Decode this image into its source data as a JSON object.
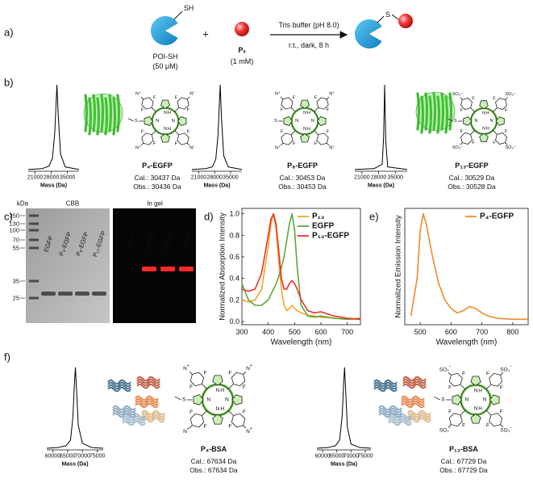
{
  "panel_labels": [
    "a)",
    "b)",
    "c)",
    "d)",
    "e)",
    "f)"
  ],
  "scheme": {
    "protein": "POI-SH",
    "protein_conc": "(50 μM)",
    "thiol": "SH",
    "plus": "+",
    "reagent": "Pₓ",
    "reagent_conc": "(1 mM)",
    "condition_1": "Tris buffer (pH 8.0)",
    "condition_2": "r.t., dark, 8 h",
    "linker": "S"
  },
  "conjugates": [
    {
      "name": "P₄-EGFP",
      "calculated": "Cal.: 30437 Da",
      "observed": "Obs.: 30436 Da",
      "atoms": {
        "N": "N",
        "H": "H",
        "F": "F",
        "S": "S",
        "group": "N",
        "charge": "+"
      }
    },
    {
      "name": "P₈-EGFP",
      "calculated": "Cal.: 30453 Da",
      "observed": "Obs.: 30453 Da",
      "atoms": {
        "N": "N",
        "H": "H",
        "F": "F",
        "S": "S",
        "group": "N",
        "charge": "+"
      }
    },
    {
      "name": "P₁₃-EGFP",
      "calculated": "Cal.: 30529 Da",
      "observed": "Obs.: 30528 Da",
      "atoms": {
        "N": "N",
        "H": "H",
        "F": "F",
        "S": "S",
        "group": "SO₃",
        "charge": "−"
      }
    },
    {
      "name": "P₄-BSA",
      "calculated": "Cal.: 67634 Da",
      "observed": "Obs.: 67634 Da",
      "atoms": {
        "N": "N",
        "H": "H",
        "F": "F",
        "S": "S",
        "group": "N",
        "charge": "+"
      }
    },
    {
      "name": "P₁₃-BSA",
      "calculated": "Cal.: 67729 Da",
      "observed": "Obs.: 67729 Da",
      "atoms": {
        "N": "N",
        "H": "H",
        "F": "F",
        "S": "S",
        "group": "SO₃",
        "charge": "−"
      }
    }
  ],
  "gel": {
    "unit": "kDa",
    "ladder": [
      "250",
      "130",
      "100",
      "70",
      "55",
      "35",
      "25"
    ],
    "stains": [
      "CBB",
      "In gel"
    ],
    "lanes": [
      "EGFP",
      "P₄-EGFP",
      "P₈-EGFP",
      "P₁₃-EGFP"
    ]
  },
  "chart_data": [
    {
      "type": "line",
      "xlabel": "Mass (Da)",
      "color": "#000000",
      "x": [
        18000,
        24000,
        27000,
        28500,
        29500,
        30000,
        30437,
        31000,
        32000,
        34000,
        40000
      ],
      "values": [
        0.02,
        0.03,
        0.06,
        0.15,
        0.45,
        0.75,
        1,
        0.65,
        0.2,
        0.05,
        0.02
      ],
      "xlim": [
        18000,
        40000
      ],
      "ylim": [
        0,
        1.05
      ],
      "xticks": [
        21000,
        28000,
        35000
      ]
    },
    {
      "type": "line",
      "xlabel": "Mass (Da)",
      "color": "#000000",
      "x": [
        18000,
        24000,
        27000,
        28500,
        29500,
        30000,
        30453,
        31000,
        32000,
        34000,
        40000
      ],
      "values": [
        0.02,
        0.03,
        0.05,
        0.14,
        0.42,
        0.74,
        1,
        0.62,
        0.18,
        0.05,
        0.02
      ],
      "xlim": [
        18000,
        40000
      ],
      "ylim": [
        0,
        1.05
      ],
      "xticks": [
        21000,
        28000,
        35000
      ]
    },
    {
      "type": "line",
      "xlabel": "Mass (Da)",
      "color": "#000000",
      "x": [
        18000,
        26000,
        29500,
        30100,
        30528,
        31000,
        31800,
        40000
      ],
      "values": [
        0.02,
        0.03,
        0.08,
        0.4,
        1,
        0.35,
        0.05,
        0.02
      ],
      "xlim": [
        18000,
        40000
      ],
      "ylim": [
        0,
        1.05
      ],
      "xticks": [
        21000,
        28000,
        35000
      ]
    },
    {
      "type": "line",
      "xlabel": "Wavelength (nm)",
      "ylabel": "Normalized Absorption Intensity",
      "x": [
        300,
        325,
        350,
        375,
        400,
        410,
        420,
        430,
        440,
        450,
        460,
        470,
        480,
        490,
        500,
        510,
        525,
        550,
        575,
        600,
        650,
        700,
        750
      ],
      "series": [
        {
          "name": "P₁₃",
          "color": "#f5a623",
          "values": [
            0.2,
            0.18,
            0.2,
            0.3,
            0.7,
            0.9,
            1.0,
            0.85,
            0.55,
            0.3,
            0.15,
            0.1,
            0.12,
            0.15,
            0.12,
            0.1,
            0.08,
            0.06,
            0.05,
            0.04,
            0.03,
            0.02,
            0.02
          ]
        },
        {
          "name": "EGFP",
          "color": "#5aa83a",
          "values": [
            0.35,
            0.2,
            0.15,
            0.15,
            0.2,
            0.25,
            0.3,
            0.35,
            0.42,
            0.5,
            0.6,
            0.75,
            0.9,
            1.0,
            0.85,
            0.5,
            0.15,
            0.05,
            0.04,
            0.05,
            0.03,
            0.02,
            0.03
          ]
        },
        {
          "name": "P₁₃-EGFP",
          "color": "#e8322a",
          "values": [
            0.3,
            0.28,
            0.3,
            0.45,
            0.8,
            0.95,
            1.0,
            0.9,
            0.65,
            0.4,
            0.3,
            0.3,
            0.35,
            0.38,
            0.35,
            0.3,
            0.2,
            0.1,
            0.08,
            0.09,
            0.05,
            0.03,
            0.02
          ]
        }
      ],
      "xlim": [
        300,
        750
      ],
      "ylim": [
        -0.03,
        1.05
      ],
      "xticks": [
        300,
        400,
        500,
        600,
        700
      ],
      "yticks": [
        {
          "value": 0,
          "label": "0.0"
        },
        0.2,
        0.4,
        0.6,
        0.8,
        {
          "value": 1,
          "label": "1.0"
        }
      ],
      "legend": "upper right"
    },
    {
      "type": "line",
      "xlabel": "Wavelength (nm)",
      "ylabel": "Normalized Emission Intensity",
      "x": [
        470,
        490,
        500,
        510,
        520,
        540,
        560,
        580,
        600,
        620,
        640,
        660,
        680,
        700,
        720,
        750,
        800,
        850
      ],
      "series": [
        {
          "name": "P₄-EGFP",
          "color": "#f08a2c",
          "values": [
            0.05,
            0.4,
            0.85,
            1.0,
            0.9,
            0.6,
            0.35,
            0.2,
            0.12,
            0.08,
            0.1,
            0.14,
            0.12,
            0.08,
            0.05,
            0.03,
            0.02,
            0.02
          ]
        }
      ],
      "xlim": [
        450,
        850
      ],
      "ylim": [
        -0.03,
        1.05
      ],
      "xticks": [
        500,
        600,
        700,
        800
      ],
      "legend": "upper right"
    },
    {
      "type": "line",
      "xlabel": "Mass (Da)",
      "color": "#000000",
      "x": [
        58000,
        62000,
        64500,
        66000,
        66800,
        67300,
        67634,
        68000,
        68600,
        70000,
        73000,
        77000
      ],
      "values": [
        0.02,
        0.03,
        0.05,
        0.12,
        0.4,
        0.8,
        1,
        0.75,
        0.3,
        0.08,
        0.03,
        0.02
      ],
      "xlim": [
        58000,
        77000
      ],
      "ylim": [
        0,
        1.05
      ],
      "xticks": [
        60000,
        65000,
        70000,
        75000
      ]
    },
    {
      "type": "line",
      "xlabel": "Mass (Da)",
      "color": "#000000",
      "x": [
        58000,
        62000,
        64500,
        66000,
        66900,
        67400,
        67729,
        68100,
        68700,
        70000,
        73000,
        77000
      ],
      "values": [
        0.02,
        0.03,
        0.05,
        0.12,
        0.42,
        0.8,
        1,
        0.74,
        0.28,
        0.07,
        0.03,
        0.02
      ],
      "xlim": [
        58000,
        77000
      ],
      "ylim": [
        0,
        1.05
      ],
      "xticks": [
        60000,
        65000,
        70000,
        75000
      ]
    }
  ]
}
